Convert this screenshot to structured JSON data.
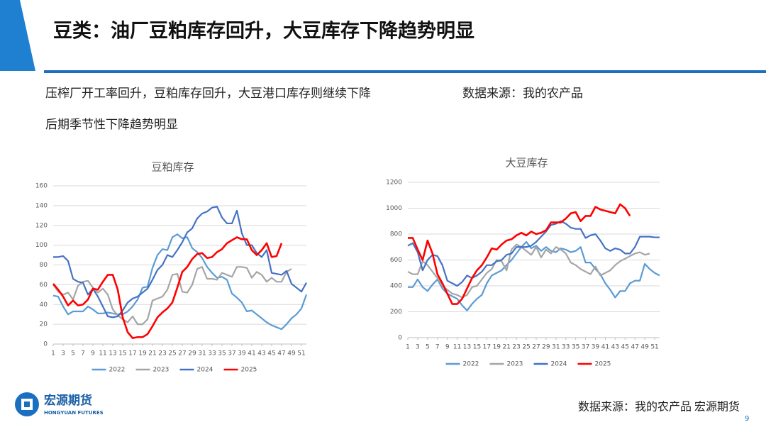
{
  "header": {
    "title": "豆类：油厂豆粕库存回升，大豆库存下降趋势明显"
  },
  "notes": {
    "lines": [
      "压榨厂开工率回升，豆粕库存回升，大豆港口库存则继续下降",
      "后期季节性下降趋势明显"
    ],
    "source": "数据来源：我的农产品"
  },
  "chart_data": [
    {
      "type": "line",
      "title": "豆粕库存",
      "x": [
        1,
        2,
        3,
        4,
        5,
        6,
        7,
        8,
        9,
        10,
        11,
        12,
        13,
        14,
        15,
        16,
        17,
        18,
        19,
        20,
        21,
        22,
        23,
        24,
        25,
        26,
        27,
        28,
        29,
        30,
        31,
        32,
        33,
        34,
        35,
        36,
        37,
        38,
        39,
        40,
        41,
        42,
        43,
        44,
        45,
        46,
        47,
        48,
        49,
        50,
        51,
        52
      ],
      "xlim": [
        1,
        52
      ],
      "xticks": [
        1,
        3,
        5,
        7,
        9,
        11,
        13,
        15,
        17,
        19,
        21,
        23,
        25,
        27,
        29,
        31,
        33,
        35,
        37,
        39,
        41,
        43,
        45,
        47,
        49,
        51
      ],
      "ylim": [
        0,
        160
      ],
      "yticks": [
        0,
        20,
        40,
        60,
        80,
        100,
        120,
        140,
        160
      ],
      "grid": true,
      "legend": "bottom",
      "series": [
        {
          "name": "2022",
          "color": "#5b9bd5",
          "values": [
            49,
            48,
            38,
            30,
            33,
            33,
            33,
            38,
            35,
            31,
            31,
            32,
            31,
            30,
            30,
            33,
            38,
            45,
            57,
            58,
            77,
            90,
            96,
            95,
            108,
            111,
            107,
            108,
            97,
            93,
            87,
            78,
            72,
            67,
            68,
            65,
            51,
            47,
            42,
            33,
            34,
            30,
            26,
            22,
            19,
            17,
            15,
            20,
            26,
            30,
            36,
            50
          ]
        },
        {
          "name": "2023",
          "color": "#a5a5a5",
          "values": [
            60,
            53,
            50,
            52,
            45,
            59,
            63,
            64,
            57,
            52,
            56,
            50,
            35,
            29,
            25,
            22,
            28,
            20,
            20,
            25,
            44,
            46,
            48,
            55,
            70,
            71,
            53,
            52,
            60,
            76,
            78,
            66,
            66,
            65,
            72,
            70,
            68,
            78,
            78,
            77,
            67,
            73,
            70,
            63,
            67,
            63,
            63,
            73,
            76,
            null,
            null,
            null
          ]
        },
        {
          "name": "2024",
          "color": "#4472c4",
          "values": [
            88,
            88,
            89,
            84,
            66,
            63,
            62,
            50,
            56,
            48,
            38,
            28,
            27,
            28,
            34,
            42,
            46,
            48,
            52,
            56,
            65,
            75,
            80,
            90,
            88,
            95,
            103,
            113,
            117,
            127,
            132,
            134,
            138,
            139,
            128,
            122,
            122,
            135,
            112,
            100,
            100,
            92,
            88,
            95,
            72,
            71,
            70,
            74,
            61,
            57,
            53,
            62
          ]
        },
        {
          "name": "2025",
          "color": "#ff0000",
          "values": [
            61,
            55,
            48,
            39,
            44,
            39,
            40,
            45,
            56,
            55,
            63,
            70,
            70,
            55,
            27,
            12,
            6,
            7,
            7,
            10,
            18,
            27,
            32,
            36,
            42,
            57,
            73,
            78,
            86,
            91,
            92,
            87,
            88,
            93,
            96,
            102,
            105,
            108,
            106,
            106,
            95,
            90,
            95,
            102,
            88,
            89,
            102,
            null,
            null,
            null,
            null,
            null
          ]
        }
      ]
    },
    {
      "type": "line",
      "title": "大豆库存",
      "x": [
        1,
        2,
        3,
        4,
        5,
        6,
        7,
        8,
        9,
        10,
        11,
        12,
        13,
        14,
        15,
        16,
        17,
        18,
        19,
        20,
        21,
        22,
        23,
        24,
        25,
        26,
        27,
        28,
        29,
        30,
        31,
        32,
        33,
        34,
        35,
        36,
        37,
        38,
        39,
        40,
        41,
        42,
        43,
        44,
        45,
        46,
        47,
        48,
        49,
        50,
        51,
        52
      ],
      "xlim": [
        1,
        52
      ],
      "xticks": [
        1,
        3,
        5,
        7,
        9,
        11,
        13,
        15,
        17,
        19,
        21,
        23,
        25,
        27,
        29,
        31,
        33,
        35,
        37,
        39,
        41,
        43,
        45,
        47,
        49,
        51
      ],
      "ylim": [
        0,
        1200
      ],
      "yticks": [
        0,
        200,
        400,
        600,
        800,
        1000,
        1200
      ],
      "grid": true,
      "legend": "bottom",
      "series": [
        {
          "name": "2022",
          "color": "#5b9bd5",
          "values": [
            390,
            390,
            450,
            390,
            360,
            410,
            450,
            380,
            340,
            320,
            300,
            250,
            210,
            260,
            300,
            330,
            420,
            480,
            500,
            520,
            560,
            600,
            650,
            700,
            740,
            690,
            710,
            670,
            700,
            670,
            660,
            690,
            680,
            660,
            670,
            700,
            580,
            580,
            530,
            490,
            420,
            370,
            310,
            360,
            360,
            420,
            440,
            440,
            570,
            530,
            500,
            480
          ]
        },
        {
          "name": "2023",
          "color": "#a5a5a5",
          "values": [
            510,
            490,
            490,
            590,
            560,
            510,
            460,
            400,
            370,
            340,
            330,
            310,
            330,
            390,
            400,
            450,
            500,
            530,
            600,
            590,
            520,
            680,
            720,
            700,
            670,
            640,
            700,
            620,
            680,
            650,
            700,
            680,
            650,
            580,
            560,
            530,
            510,
            490,
            550,
            480,
            500,
            520,
            560,
            590,
            610,
            630,
            650,
            660,
            640,
            650,
            null,
            null
          ]
        },
        {
          "name": "2024",
          "color": "#4472c4",
          "values": [
            710,
            730,
            660,
            520,
            600,
            640,
            630,
            560,
            440,
            420,
            400,
            430,
            480,
            460,
            480,
            510,
            560,
            560,
            590,
            600,
            640,
            650,
            700,
            700,
            700,
            710,
            740,
            780,
            820,
            870,
            880,
            900,
            880,
            850,
            840,
            840,
            770,
            790,
            800,
            750,
            690,
            670,
            690,
            680,
            650,
            650,
            700,
            780,
            780,
            780,
            775,
            775
          ]
        },
        {
          "name": "2025",
          "color": "#ff0000",
          "values": [
            770,
            770,
            680,
            600,
            750,
            650,
            490,
            420,
            340,
            260,
            260,
            300,
            380,
            460,
            520,
            560,
            620,
            690,
            680,
            720,
            750,
            760,
            790,
            810,
            790,
            820,
            800,
            810,
            830,
            890,
            890,
            890,
            920,
            960,
            970,
            900,
            940,
            940,
            1010,
            990,
            980,
            970,
            960,
            1030,
            1000,
            940,
            null,
            null,
            null,
            null,
            null,
            null
          ]
        }
      ]
    }
  ],
  "footer": {
    "source": "数据来源：我的农产品 宏源期货",
    "page": "9",
    "logo_name": "宏源期货",
    "logo_en": "HONGYUAN FUTURES"
  }
}
